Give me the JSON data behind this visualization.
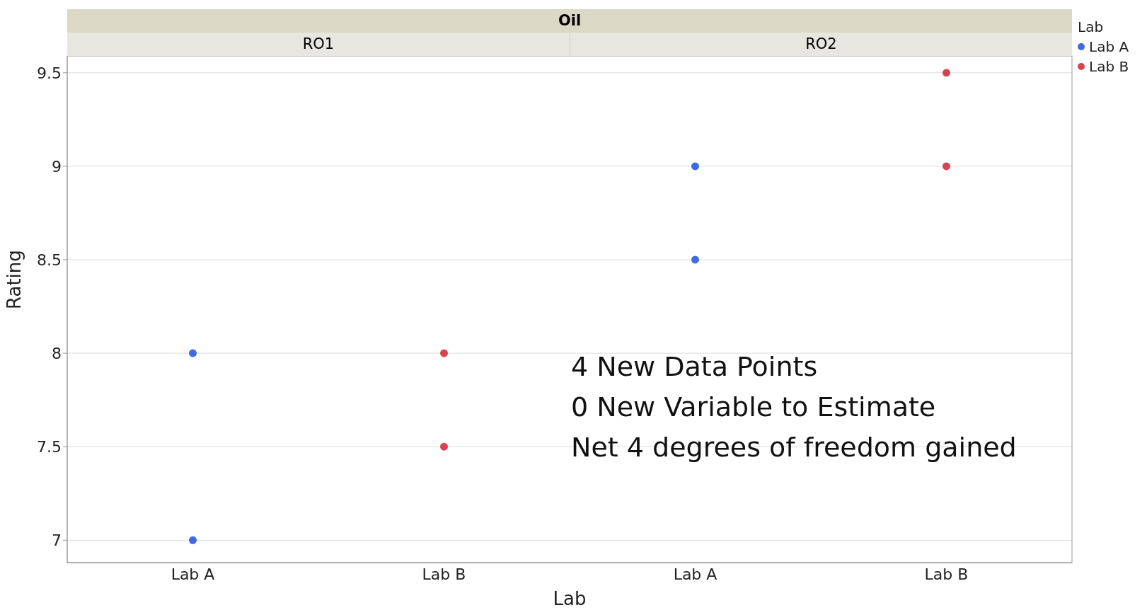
{
  "chart_data": {
    "type": "scatter",
    "title": "Oil",
    "xlabel": "Lab",
    "ylabel": "Rating",
    "legend_title": "Lab",
    "categories": [
      "Lab A",
      "Lab B",
      "Lab A",
      "Lab B"
    ],
    "series": [
      {
        "name": "Lab A",
        "color": "#4169e1",
        "values": [
          8,
          null,
          9,
          null
        ]
      },
      {
        "color": "#4169e1",
        "values": [
          7,
          null,
          8.5,
          null
        ]
      },
      {
        "name": "Lab B",
        "color": "#d94350",
        "values": [
          null,
          8,
          null,
          9.5
        ]
      },
      {
        "color": "#d94350",
        "values": [
          null,
          7.5,
          null,
          9
        ]
      }
    ],
    "ylim": [
      6.88,
      9.59
    ],
    "yticks": [
      7,
      7.5,
      8,
      8.5,
      9,
      9.5
    ],
    "grid": "y",
    "legend": "top right",
    "marker": "circle",
    "annotations": [
      "RO1",
      "RO2",
      "4 New Data Points\n0 New Variable to Estimate\nNet 4 degrees of freedom gained"
    ]
  }
}
